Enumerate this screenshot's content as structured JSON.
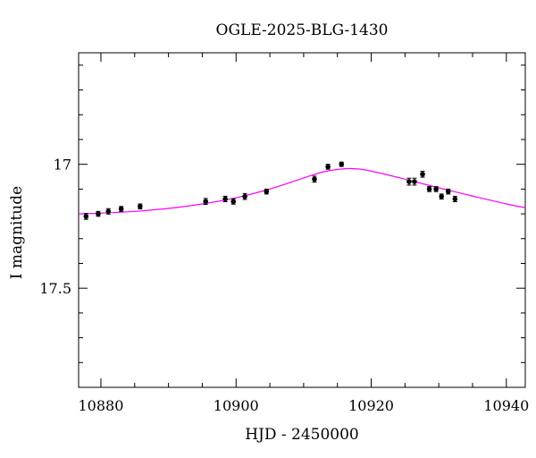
{
  "chart_data": {
    "type": "scatter",
    "title": "OGLE-2025-BLG-1430",
    "xlabel": "HJD - 2450000",
    "ylabel": "I magnitude",
    "xlim": [
      10876.7,
      10942.8
    ],
    "ylim": [
      17.9,
      17.0
    ],
    "ylim_display": [
      17.9,
      16.55
    ],
    "y_inverted": true,
    "x_ticks": [
      10880,
      10900,
      10920,
      10940
    ],
    "x_tick_labels": [
      "10880",
      "10900",
      "10920",
      "10940"
    ],
    "y_ticks": [
      17.0,
      17.5
    ],
    "y_tick_labels": [
      "17",
      "17.5"
    ],
    "grid": false,
    "series": [
      {
        "kind": "points",
        "color": "#000000",
        "x": [
          10877.8,
          10879.6,
          10881.1,
          10883.0,
          10885.8,
          10895.5,
          10898.4,
          10899.6,
          10901.3,
          10904.5,
          10911.6,
          10913.6,
          10915.6,
          10925.6,
          10926.4,
          10927.6,
          10928.6,
          10929.6,
          10930.4,
          10931.4,
          10932.4
        ],
        "y": [
          17.21,
          17.2,
          17.19,
          17.18,
          17.17,
          17.15,
          17.14,
          17.15,
          17.13,
          17.11,
          17.06,
          17.01,
          17.0,
          17.07,
          17.07,
          17.04,
          17.1,
          17.1,
          17.13,
          17.11,
          17.14
        ],
        "yerr": [
          0.012,
          0.01,
          0.011,
          0.01,
          0.01,
          0.012,
          0.011,
          0.011,
          0.012,
          0.01,
          0.012,
          0.01,
          0.009,
          0.014,
          0.014,
          0.012,
          0.01,
          0.01,
          0.01,
          0.01,
          0.011
        ]
      },
      {
        "kind": "model-curve",
        "color": "#ff00ff",
        "x": [
          10876.7,
          10880,
          10885,
          10890,
          10895,
          10900,
          10905,
          10910,
          10913,
          10916,
          10917.5,
          10919,
          10922,
          10925,
          10930,
          10935,
          10940,
          10942.8
        ],
        "y": [
          17.2,
          17.197,
          17.19,
          17.178,
          17.16,
          17.135,
          17.1,
          17.055,
          17.03,
          17.018,
          17.018,
          17.022,
          17.04,
          17.06,
          17.095,
          17.128,
          17.16,
          17.175
        ]
      }
    ]
  }
}
